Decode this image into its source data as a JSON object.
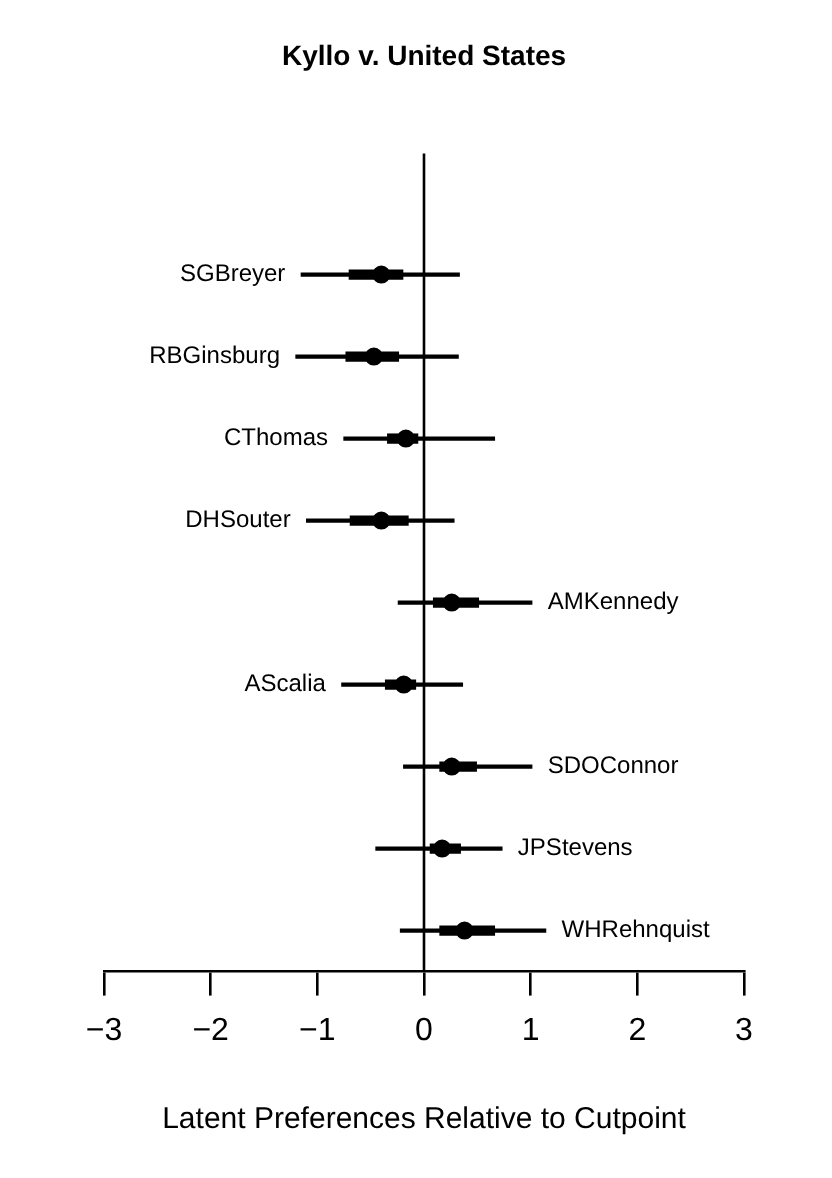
{
  "chart_data": {
    "type": "scatter",
    "title": "Kyllo v. United States",
    "xlabel": "Latent Preferences Relative to Cutpoint",
    "orientation": "horizontal",
    "marker": "circle",
    "categories": [
      "SGBreyer",
      "RBGinsburg",
      "CThomas",
      "DHSouter",
      "AMKennedy",
      "AScalia",
      "SDOConnor",
      "JPStevens",
      "WHRehnquist"
    ],
    "series": [
      {
        "type": "bar",
        "color": "#000000",
        "base": [
          -1.15,
          -1.2,
          -0.75,
          -1.1,
          -0.24,
          -0.77,
          -0.19,
          -0.45,
          -0.22
        ],
        "values": [
          1.48,
          1.52,
          1.41,
          1.38,
          1.25,
          1.13,
          1.2,
          1.18,
          1.36
        ]
      },
      {
        "type": "bar",
        "color": "#000000",
        "base": [
          -0.7,
          -0.73,
          -0.34,
          -0.69,
          0.09,
          -0.36,
          0.15,
          0.06,
          0.15
        ],
        "values": [
          0.5,
          0.49,
          0.28,
          0.54,
          0.42,
          0.28,
          0.34,
          0.28,
          0.51
        ]
      },
      {
        "color": "#000000",
        "values": [
          -0.4,
          -0.47,
          -0.17,
          -0.4,
          0.26,
          -0.19,
          0.26,
          0.17,
          0.38
        ]
      }
    ],
    "xlim": [
      -3,
      3
    ],
    "xticks": [
      {
        "value": -3,
        "label": "−3"
      },
      {
        "value": -2,
        "label": "−2"
      },
      {
        "value": -1,
        "label": "−1"
      },
      0,
      1,
      2,
      3
    ],
    "ref_lines": [
      {
        "axis": "x",
        "value": 0,
        "color": "#000000"
      }
    ],
    "tick_labels": "x",
    "grid": false,
    "legend": false
  }
}
